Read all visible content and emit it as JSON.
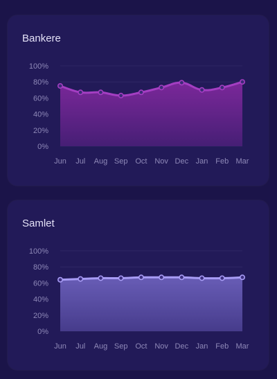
{
  "charts": [
    {
      "title": "Bankere",
      "chart_data": {
        "type": "area",
        "categories": [
          "Jun",
          "Jul",
          "Aug",
          "Sep",
          "Oct",
          "Nov",
          "Dec",
          "Jan",
          "Feb",
          "Mar"
        ],
        "series": [
          {
            "values": [
              75,
              67,
              67,
              63,
              67,
              73,
              79,
              70,
              73,
              80
            ]
          }
        ],
        "y_ticks": [
          "0%",
          "20%",
          "40%",
          "60%",
          "80%",
          "100%"
        ],
        "ylim": [
          0,
          100
        ],
        "grid": true,
        "colors": {
          "line": "#a43ec2",
          "fill_top": "#8a2aa5",
          "fill_bottom": "#4a1f78",
          "marker_fill": "#3d2a78"
        }
      }
    },
    {
      "title": "Samlet",
      "chart_data": {
        "type": "area",
        "categories": [
          "Jun",
          "Jul",
          "Aug",
          "Sep",
          "Oct",
          "Nov",
          "Dec",
          "Jan",
          "Feb",
          "Mar"
        ],
        "series": [
          {
            "values": [
              64,
              65,
              66,
              66,
              67,
              67,
              67,
              66,
              66,
              67
            ]
          }
        ],
        "y_ticks": [
          "0%",
          "20%",
          "40%",
          "60%",
          "80%",
          "100%"
        ],
        "ylim": [
          0,
          100
        ],
        "grid": true,
        "colors": {
          "line": "#a89cf5",
          "fill_top": "#7468c6",
          "fill_bottom": "#4a3f91",
          "marker_fill": "#3d2f80"
        }
      }
    }
  ]
}
